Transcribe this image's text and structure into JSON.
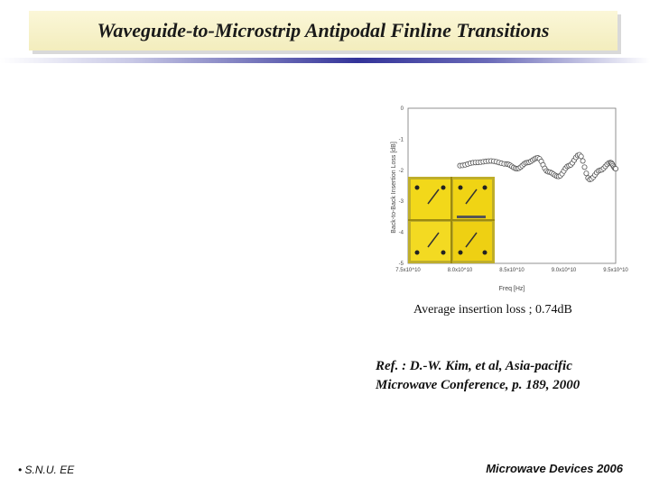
{
  "slide": {
    "title": "Waveguide-to-Microstrip Antipodal Finline Transitions",
    "caption": "Average insertion loss ; 0.74dB",
    "reference_line1": "Ref. : D.-W. Kim, et al,  Asia-pacific",
    "reference_line2": "Microwave Conference, p. 189, 2000",
    "footer_left": "S.N.U. EE",
    "footer_right": "Microwave Devices 2006"
  },
  "chart_data": {
    "type": "scatter",
    "xlabel": "Freq [Hz]",
    "ylabel": "Back-to-Back Insertion Loss [dB]",
    "xlim": [
      75000000000.0,
      95000000000.0
    ],
    "ylim": [
      -5,
      0
    ],
    "x_ticks": [
      "7.5x10^10",
      "8.0x10^10",
      "8.5x10^10",
      "9.0x10^10",
      "9.5x10^10"
    ],
    "y_ticks": [
      "0",
      "-1",
      "-2",
      "-3",
      "-4",
      "-5"
    ],
    "series": [
      {
        "x": [
          80000000000.0,
          81500000000.0,
          83000000000.0,
          84500000000.0,
          85500000000.0,
          86500000000.0,
          87500000000.0,
          88500000000.0,
          89500000000.0,
          90500000000.0,
          91500000000.0,
          92500000000.0,
          93500000000.0,
          94500000000.0,
          95000000000.0
        ],
        "values": [
          -1.85,
          -1.75,
          -1.7,
          -1.8,
          -1.95,
          -1.75,
          -1.6,
          -2.05,
          -2.2,
          -1.85,
          -1.5,
          -2.3,
          -2.0,
          -1.75,
          -1.95
        ]
      }
    ]
  }
}
